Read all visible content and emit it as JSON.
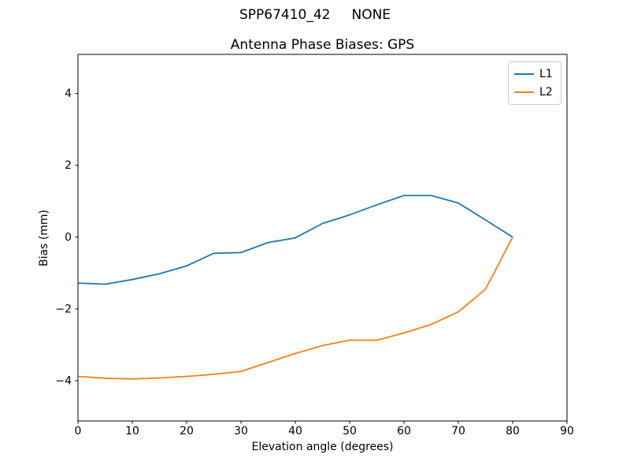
{
  "chart_data": {
    "type": "line",
    "suptitle": "SPP67410_42     NONE",
    "title": "Antenna Phase Biases: GPS",
    "xlabel": "Elevation angle (degrees)",
    "ylabel": "Bias (mm)",
    "xlim": [
      0,
      90
    ],
    "ylim": [
      -5.12,
      5.09
    ],
    "xticks": [
      0,
      10,
      20,
      30,
      40,
      50,
      60,
      70,
      80,
      90
    ],
    "yticks": [
      -4,
      -2,
      0,
      2,
      4
    ],
    "grid": false,
    "legend_position": "upper right",
    "x": [
      0,
      5,
      10,
      15,
      20,
      25,
      30,
      35,
      40,
      45,
      50,
      55,
      60,
      65,
      70,
      75,
      80
    ],
    "series": [
      {
        "name": "L1",
        "color": "#1f77b4",
        "values": [
          -1.28,
          -1.31,
          -1.18,
          -1.02,
          -0.8,
          -0.45,
          -0.43,
          -0.15,
          -0.02,
          0.38,
          0.62,
          0.9,
          1.16,
          1.16,
          0.95,
          0.48,
          0.0
        ]
      },
      {
        "name": "L2",
        "color": "#ff7f0e",
        "values": [
          -3.88,
          -3.93,
          -3.95,
          -3.92,
          -3.88,
          -3.82,
          -3.74,
          -3.49,
          -3.24,
          -3.02,
          -2.87,
          -2.87,
          -2.67,
          -2.43,
          -2.08,
          -1.45,
          0.0
        ]
      }
    ],
    "axis_color": "#000000",
    "background_color": "#ffffff"
  }
}
